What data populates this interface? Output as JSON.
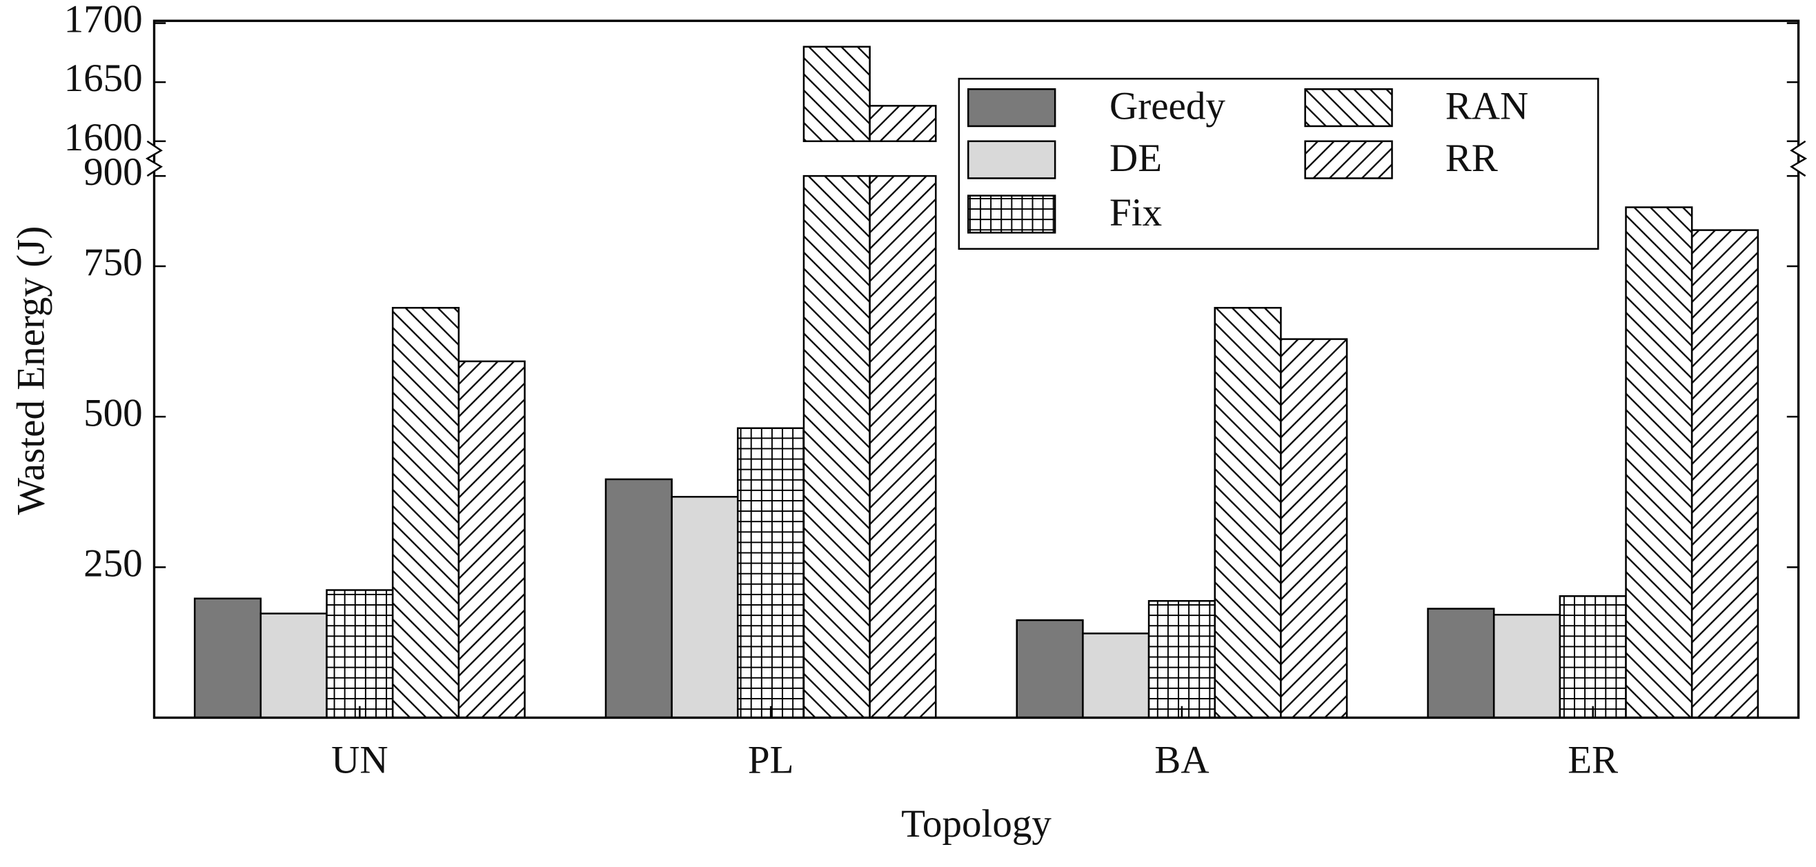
{
  "chart_data": {
    "type": "bar",
    "ylabel": "Wasted Energy (J)",
    "xlabel": "Topology",
    "categories": [
      "UN",
      "PL",
      "BA",
      "ER"
    ],
    "series": [
      {
        "name": "Greedy",
        "color": "#7a7a7a",
        "pattern": "solid",
        "values": [
          198,
          396,
          162,
          181
        ]
      },
      {
        "name": "DE",
        "color": "#d9d9d9",
        "pattern": "solid",
        "values": [
          173,
          367,
          140,
          171
        ]
      },
      {
        "name": "Fix",
        "color": "#ffffff",
        "pattern": "grid",
        "values": [
          212,
          481,
          194,
          202
        ]
      },
      {
        "name": "RAN",
        "color": "#ffffff",
        "pattern": "backslash",
        "values": [
          681,
          1680,
          681,
          848
        ]
      },
      {
        "name": "RR",
        "color": "#ffffff",
        "pattern": "slash",
        "values": [
          592,
          1630,
          629,
          810
        ]
      }
    ],
    "ylim": [
      0,
      1700
    ],
    "axis_break": [
      900,
      1600
    ],
    "yticks": [
      250,
      500,
      750,
      900,
      1600,
      1650,
      1700
    ],
    "legend": "upper right",
    "legend_columns": 2
  }
}
